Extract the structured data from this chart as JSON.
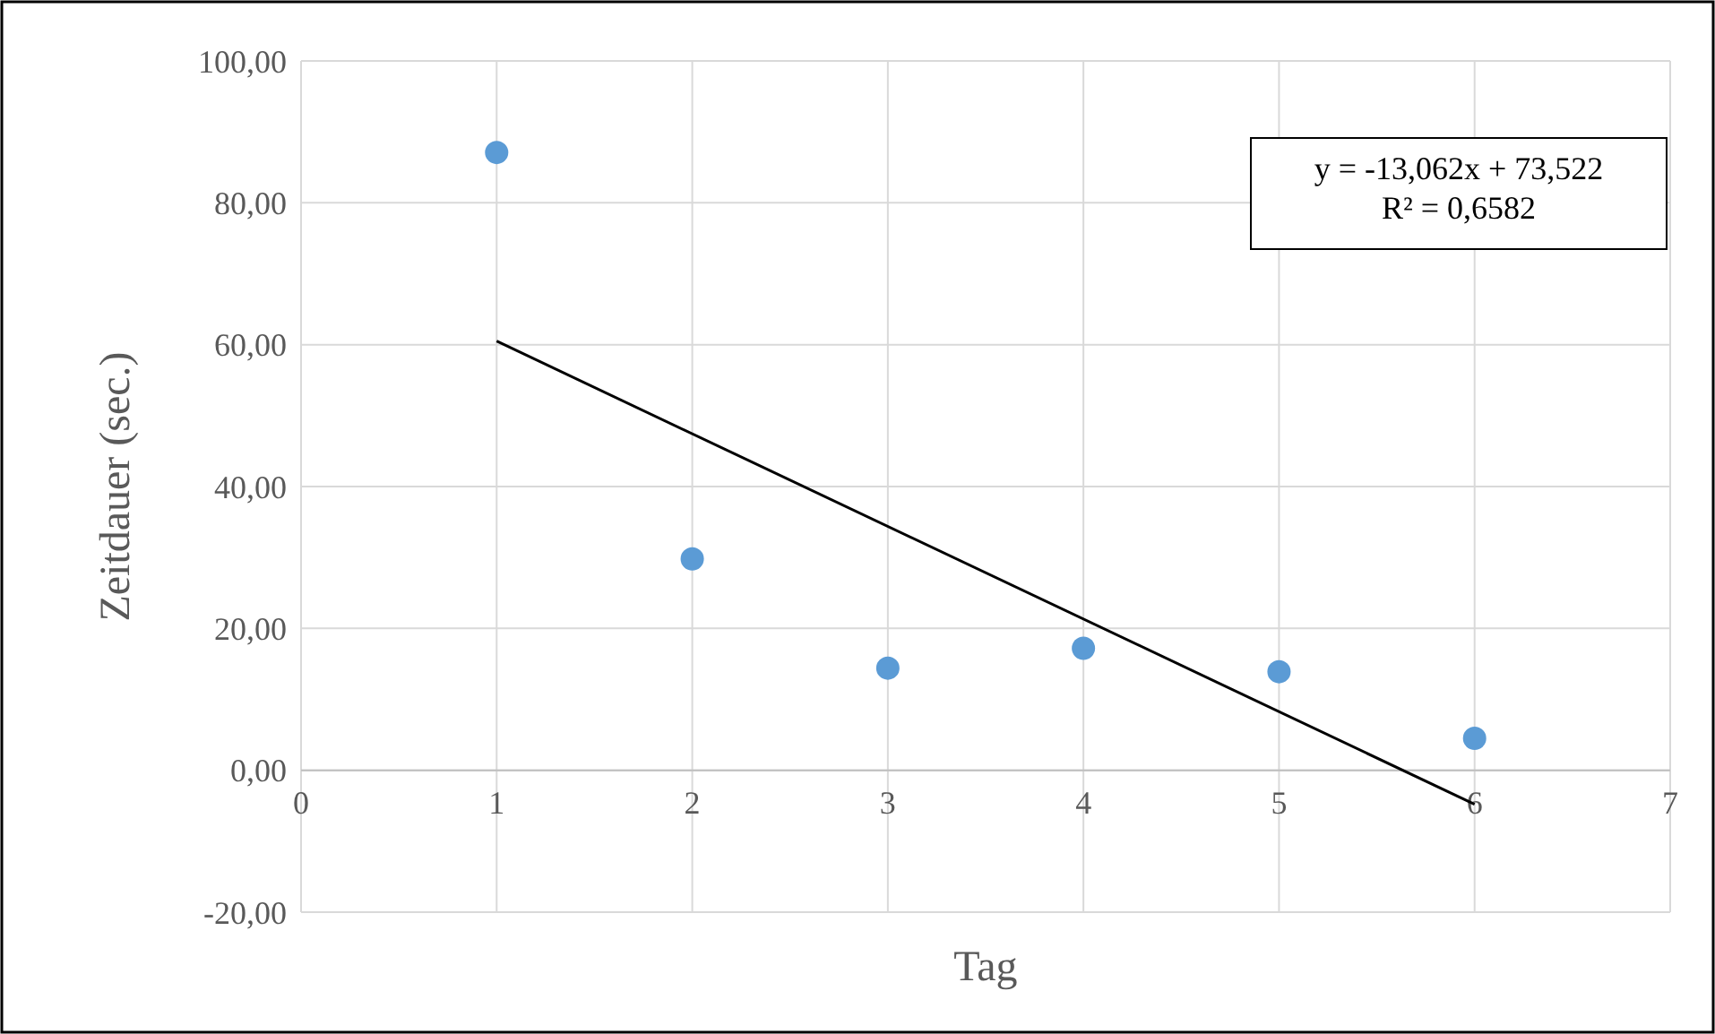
{
  "chart_data": {
    "type": "scatter",
    "xlabel": "Tag",
    "ylabel": "Zeitdauer (sec.)",
    "xlim": [
      0,
      7
    ],
    "xticks": [
      0,
      1,
      2,
      3,
      4,
      5,
      6,
      7
    ],
    "ylim": [
      -20,
      100
    ],
    "yticks": [
      {
        "value": -20,
        "label": "-20,00"
      },
      {
        "value": 0,
        "label": "0,00"
      },
      {
        "value": 20,
        "label": "20,00"
      },
      {
        "value": 40,
        "label": "40,00"
      },
      {
        "value": 60,
        "label": "60,00"
      },
      {
        "value": 80,
        "label": "80,00"
      },
      {
        "value": 100,
        "label": "100,00"
      }
    ],
    "grid": true,
    "marker": "circle",
    "series": [
      {
        "color": "#5b9bd5",
        "x": [
          1,
          2,
          3,
          4,
          5,
          6
        ],
        "values": [
          87.1,
          29.8,
          14.4,
          17.2,
          13.9,
          4.5
        ]
      },
      {
        "type": "line",
        "marker": "none",
        "color": "#000000",
        "x": [
          1,
          6
        ],
        "values": [
          60.5,
          -4.8
        ]
      }
    ],
    "annotations": [
      "y = -13,062x + 73,522",
      "R² = 0,6582"
    ]
  }
}
